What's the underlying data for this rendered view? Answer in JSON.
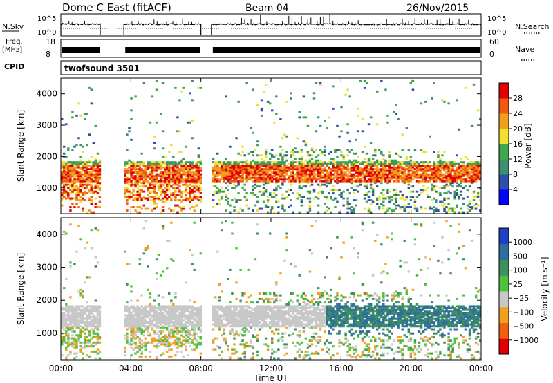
{
  "header": {
    "title": "Dome C East (fitACF)",
    "beam": "Beam 04",
    "date": "26/Nov/2015"
  },
  "status_panels": {
    "nsky_label": "N.Sky",
    "nsky_ticks": [
      "10^5",
      "10^0"
    ],
    "nsearch_label": "N.Search",
    "nsearch_ticks": [
      "10^5",
      "10^0"
    ],
    "freq_label": "Freq.",
    "freq_unit": "[MHz]",
    "freq_ticks": [
      "18",
      "8"
    ],
    "nave_label": "Nave",
    "nave_ticks": [
      "60",
      "0"
    ],
    "cpid_label": "CPID",
    "cpid_value": "twofsound 3501",
    "data_gaps_hours": [
      [
        2.25,
        3.6
      ],
      [
        8.0,
        8.6
      ]
    ]
  },
  "chart_data": [
    {
      "type": "heatmap",
      "name": "Power",
      "ylabel": "Slant Range [km]",
      "ylim": [
        180,
        4500
      ],
      "yticks": [
        "1000",
        "2000",
        "3000",
        "4000"
      ],
      "xlim": [
        0,
        24
      ],
      "colorbar_label": "Power [dB]",
      "colorbar_ticks": [
        "4",
        "8",
        "12",
        "16",
        "20",
        "24",
        "28"
      ],
      "colorbar_range": [
        0,
        30
      ],
      "colors": [
        "#0000ff",
        "#2d4fa8",
        "#3f8f6f",
        "#3fa84a",
        "#f0e030",
        "#f0a020",
        "#f05a10",
        "#e00000"
      ]
    },
    {
      "type": "heatmap",
      "name": "Velocity",
      "ylabel": "Slant Range [km]",
      "ylim": [
        180,
        4500
      ],
      "yticks": [
        "1000",
        "2000",
        "3000",
        "4000"
      ],
      "xlim": [
        0,
        24
      ],
      "xlabel": "Time UT",
      "xticks": [
        "00:00",
        "04:00",
        "08:00",
        "12:00",
        "16:00",
        "20:00",
        "00:00"
      ],
      "colorbar_label": "Velocity [m s⁻¹]",
      "colorbar_ticks": [
        "1000",
        "500",
        "100",
        "25",
        "−25",
        "−100",
        "−500",
        "−1000"
      ],
      "colors": [
        "#2040c0",
        "#2f6f9f",
        "#3f8f5f",
        "#50c040",
        "#c8c8c8",
        "#f0a020",
        "#f06010",
        "#e00000"
      ]
    }
  ]
}
